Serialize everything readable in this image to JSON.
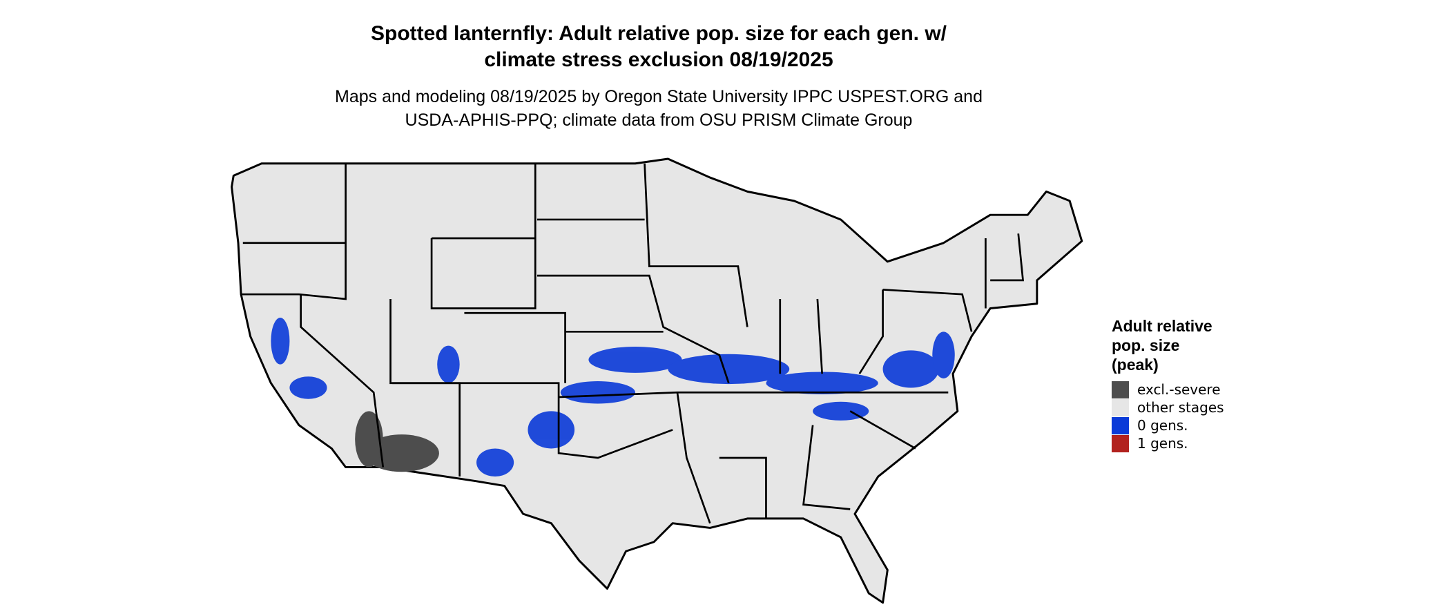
{
  "header": {
    "title": [
      "Spotted lanternfly: Adult relative pop. size for each gen. w/",
      "climate stress exclusion 08/19/2025"
    ],
    "subtitle": [
      "Maps and modeling 08/19/2025 by Oregon State University IPPC USPEST.ORG and",
      "USDA-APHIS-PPQ; climate data from OSU PRISM Climate Group"
    ]
  },
  "legend": {
    "title": [
      "Adult relative",
      "pop. size",
      "(peak)"
    ],
    "items": [
      {
        "label": "excl.-severe",
        "color": "#4d4d4d"
      },
      {
        "label": "other stages",
        "color": "#e6e6e6"
      },
      {
        "label": "0 gens.",
        "color": "#0a3ad8"
      },
      {
        "label": "1 gens.",
        "color": "#b2221e"
      }
    ]
  }
}
